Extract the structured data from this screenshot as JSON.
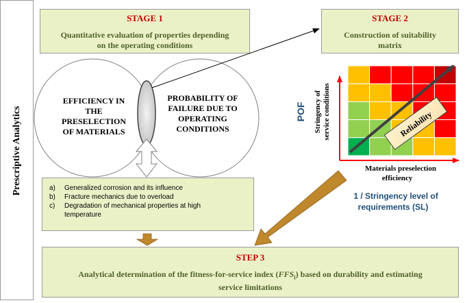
{
  "side_label": "Prescriptive Analytics",
  "stage1": {
    "title": "STAGE 1",
    "line1": "Quantitative evaluation of properties depending",
    "line2": "on the operating conditions"
  },
  "stage2": {
    "title": "STAGE 2",
    "line1": "Construction of suitability",
    "line2": "matrix"
  },
  "circle_left": {
    "l1": "EFFICIENCY IN",
    "l2": "THE",
    "l3": "PRESELECTION",
    "l4": "OF MATERIALS"
  },
  "circle_right": {
    "l1": "PROBABILITY OF",
    "l2": "FAILURE DUE TO",
    "l3": "OPERATING",
    "l4": "CONDITIONS"
  },
  "list": {
    "a": {
      "marker": "a)",
      "text": "Generalized corrosion and its influence"
    },
    "b": {
      "marker": "b)",
      "text": "Fracture mechanics due to overload"
    },
    "c": {
      "marker": "c)",
      "text": "Degradation of mechanical properties at high",
      "text2": "temperature"
    }
  },
  "matrix": {
    "pof_label": "POF",
    "y_label1": "Stringency of",
    "y_label2": "service conditions",
    "x_label1": "Materials preselection",
    "x_label2": "efficiency",
    "reliability": "Reliability",
    "sl1": "1 / Stringency level of",
    "sl2": "requirements (SL)",
    "colors": {
      "row1": [
        "#ffc000",
        "#ff0000",
        "#ff0000",
        "#ff0000",
        "#c00000"
      ],
      "row2": [
        "#ffc000",
        "#ffc000",
        "#ff0000",
        "#ff0000",
        "#ff0000"
      ],
      "row3": [
        "#92d050",
        "#ffc000",
        "#ffc000",
        "#ff0000",
        "#ff0000"
      ],
      "row4": [
        "#92d050",
        "#92d050",
        "#ffc000",
        "#ffc000",
        "#ff0000"
      ],
      "row5": [
        "#00b050",
        "#92d050",
        "#92d050",
        "#ffc000",
        "#ffc000"
      ]
    }
  },
  "step3": {
    "title": "STEP 3",
    "line1a": "Analytical determination of the fitness-for-service index (",
    "line1i": "FFS",
    "line1s": "i",
    "line1b": ") based on durability and estimating",
    "line2": "service limitations"
  },
  "colors": {
    "box_fill": "#ebf1c7",
    "title": "#c00000",
    "subtitle": "#4f6228",
    "arrow_brown": "#c0882c",
    "pof": "#1f4e79"
  }
}
